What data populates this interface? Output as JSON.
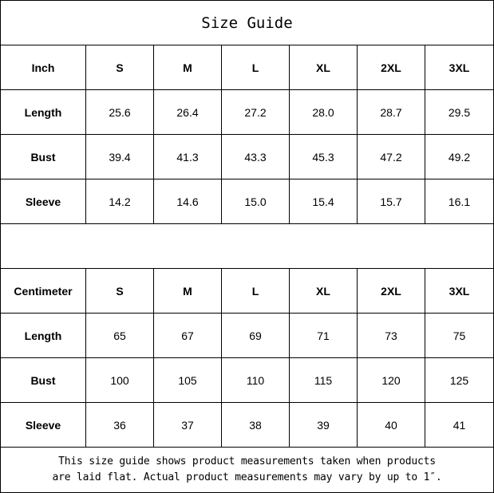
{
  "title": "Size Guide",
  "inch": {
    "header": [
      "Inch",
      "S",
      "M",
      "L",
      "XL",
      "2XL",
      "3XL"
    ],
    "rows": [
      [
        "Length",
        "25.6",
        "26.4",
        "27.2",
        "28.0",
        "28.7",
        "29.5"
      ],
      [
        "Bust",
        "39.4",
        "41.3",
        "43.3",
        "45.3",
        "47.2",
        "49.2"
      ],
      [
        "Sleeve",
        "14.2",
        "14.6",
        "15.0",
        "15.4",
        "15.7",
        "16.1"
      ]
    ]
  },
  "centimeter": {
    "header": [
      "Centimeter",
      "S",
      "M",
      "L",
      "XL",
      "2XL",
      "3XL"
    ],
    "rows": [
      [
        "Length",
        "65",
        "67",
        "69",
        "71",
        "73",
        "75"
      ],
      [
        "Bust",
        "100",
        "105",
        "110",
        "115",
        "120",
        "125"
      ],
      [
        "Sleeve",
        "36",
        "37",
        "38",
        "39",
        "40",
        "41"
      ]
    ]
  },
  "footer": {
    "line1": "This size guide shows product measurements taken when products",
    "line2": "are laid flat. Actual product measurements may vary by up to 1″."
  }
}
